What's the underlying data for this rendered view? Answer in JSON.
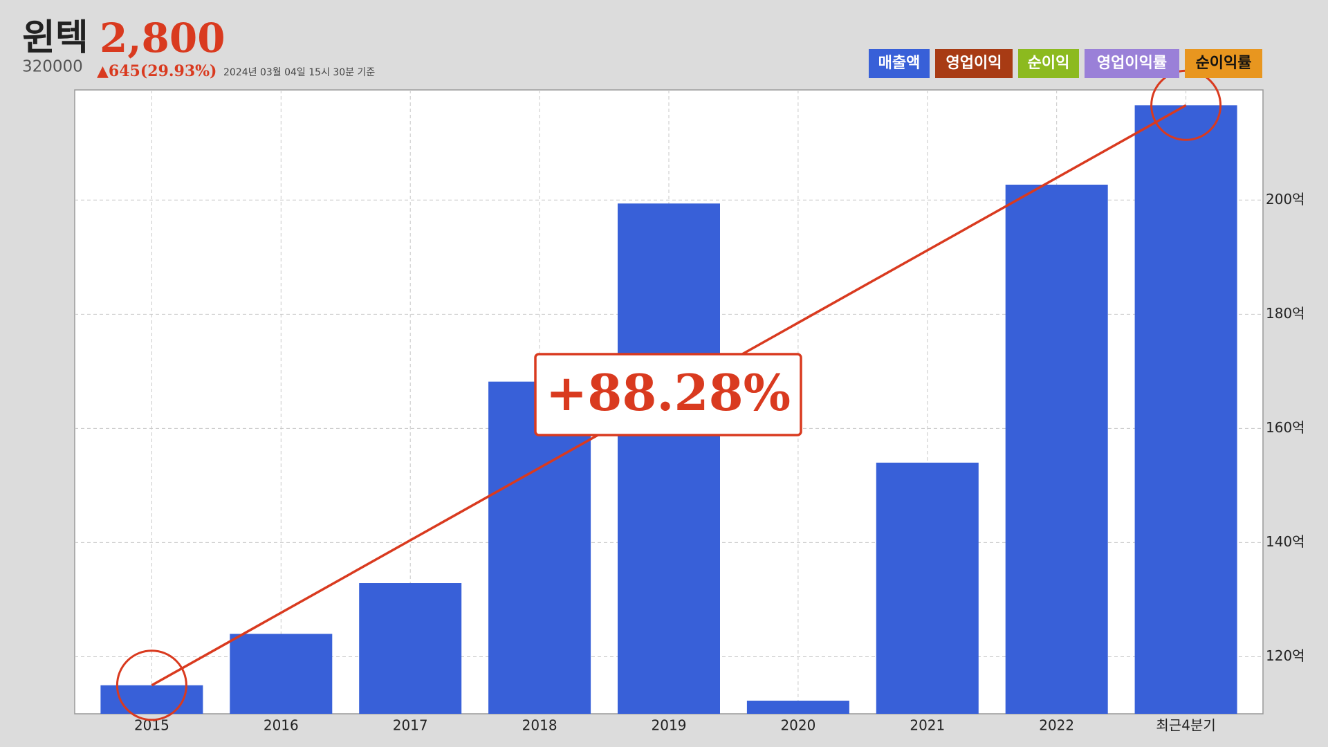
{
  "header": {
    "name": "윈텍",
    "price": "2,800",
    "code": "320000",
    "change": "▲645(29.93%)",
    "timestamp": "2024년 03월 04일 15시 30분 기준"
  },
  "chart_data": {
    "type": "bar",
    "categories": [
      "2015",
      "2016",
      "2017",
      "2018",
      "2019",
      "2020",
      "2021",
      "2022",
      "최근4분기"
    ],
    "series": [
      {
        "name": "매출액",
        "color": "#3860d8",
        "values": [
          115,
          124,
          132.9,
          168.2,
          199.4,
          112.3,
          154,
          202.7,
          216.6
        ]
      }
    ],
    "other_legend_items": [
      {
        "name": "영업이익",
        "color": "#a83b14"
      },
      {
        "name": "순이익",
        "color": "#8cba1f"
      },
      {
        "name": "영업이익률",
        "color": "#9a80d8"
      },
      {
        "name": "순이익률",
        "color": "#e8961f"
      }
    ],
    "ylim": [
      110,
      219.3
    ],
    "yticks": [
      {
        "value": 120,
        "label": "120억"
      },
      {
        "value": 140,
        "label": "140억"
      },
      {
        "value": 160,
        "label": "160억"
      },
      {
        "value": 180,
        "label": "180억"
      },
      {
        "value": 200,
        "label": "200억"
      }
    ],
    "grid": true,
    "annotation": "+88.28%",
    "annotation_color": "#d93a1f"
  }
}
